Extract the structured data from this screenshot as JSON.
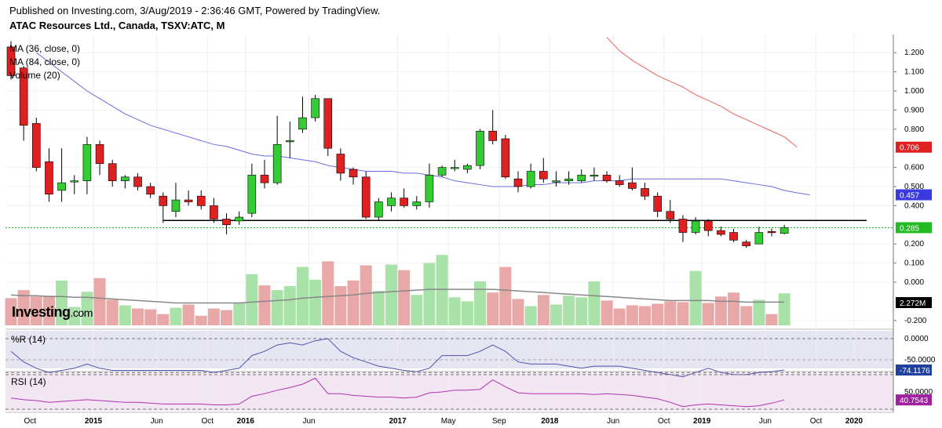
{
  "header": {
    "published": "Published on Investing.com, 3/Aug/2019 - 2:36:46 GMT, Powered by TradingView.",
    "symbol_title": "ATAC Resources Ltd., Canada, TSXV:ATC, M"
  },
  "legend": {
    "ma36": "MA (36, close, 0)",
    "ma84": "MA (84, close, 0)",
    "volume": "Volume (20)"
  },
  "logo": {
    "main": "Investing",
    "suffix": ".com"
  },
  "panes": {
    "williams_r": "%R (14)",
    "rsi": "RSI (14)"
  },
  "colors": {
    "up": "#33cc33",
    "down": "#e02020",
    "ma36": "#6a6ae0",
    "ma84": "#f06060",
    "vol_up": "#a8e2a8",
    "vol_down": "#e8a8a8",
    "vol_ma": "#888888",
    "wr_line": "#5050b0",
    "rsi_line": "#b030b0",
    "price_line": "#00c000",
    "badge_dark": "#000000",
    "badge_price": "#22bb22",
    "badge_wr": "#2040a0",
    "badge_rsi": "#a020a0"
  },
  "chart_data": {
    "type": "candlestick",
    "price_axis": {
      "ticks": [
        "1.200",
        "1.100",
        "1.000",
        "0.900",
        "0.800",
        "0.600",
        "0.500",
        "0.400",
        "0.200",
        "0.100",
        "0.000",
        "-0.200"
      ],
      "tick_values": [
        1.2,
        1.1,
        1.0,
        0.9,
        0.8,
        0.6,
        0.5,
        0.4,
        0.2,
        0.1,
        0.0,
        -0.2
      ]
    },
    "x_labels": [
      {
        "label": "Oct",
        "i": 1.5
      },
      {
        "label": "2015",
        "i": 6.5,
        "bold": true
      },
      {
        "label": "Jun",
        "i": 11.5
      },
      {
        "label": "Oct",
        "i": 15.5
      },
      {
        "label": "2016",
        "i": 18.5,
        "bold": true
      },
      {
        "label": "Jun",
        "i": 23.5
      },
      {
        "label": "2017",
        "i": 30.5,
        "bold": true
      },
      {
        "label": "May",
        "i": 34.5
      },
      {
        "label": "Sep",
        "i": 38.5
      },
      {
        "label": "2018",
        "i": 42.5,
        "bold": true
      },
      {
        "label": "Jun",
        "i": 47.5
      },
      {
        "label": "Oct",
        "i": 51.5
      },
      {
        "label": "2019",
        "i": 54.5,
        "bold": true
      },
      {
        "label": "Jun",
        "i": 59.5
      },
      {
        "label": "Oct",
        "i": 63.5
      },
      {
        "label": "2020",
        "i": 66.5,
        "bold": true
      }
    ],
    "candles": [
      {
        "o": 1.23,
        "h": 1.26,
        "l": 1.06,
        "c": 1.08
      },
      {
        "o": 1.12,
        "h": 1.13,
        "l": 0.74,
        "c": 0.82
      },
      {
        "o": 0.83,
        "h": 0.86,
        "l": 0.58,
        "c": 0.6
      },
      {
        "o": 0.63,
        "h": 0.7,
        "l": 0.42,
        "c": 0.46
      },
      {
        "o": 0.48,
        "h": 0.7,
        "l": 0.42,
        "c": 0.52
      },
      {
        "o": 0.53,
        "h": 0.56,
        "l": 0.46,
        "c": 0.53
      },
      {
        "o": 0.53,
        "h": 0.76,
        "l": 0.46,
        "c": 0.72
      },
      {
        "o": 0.72,
        "h": 0.74,
        "l": 0.56,
        "c": 0.62
      },
      {
        "o": 0.62,
        "h": 0.64,
        "l": 0.5,
        "c": 0.53
      },
      {
        "o": 0.53,
        "h": 0.56,
        "l": 0.49,
        "c": 0.55
      },
      {
        "o": 0.55,
        "h": 0.57,
        "l": 0.48,
        "c": 0.5
      },
      {
        "o": 0.5,
        "h": 0.52,
        "l": 0.44,
        "c": 0.46
      },
      {
        "o": 0.45,
        "h": 0.47,
        "l": 0.31,
        "c": 0.4
      },
      {
        "o": 0.37,
        "h": 0.52,
        "l": 0.34,
        "c": 0.43
      },
      {
        "o": 0.43,
        "h": 0.48,
        "l": 0.4,
        "c": 0.42
      },
      {
        "o": 0.45,
        "h": 0.48,
        "l": 0.38,
        "c": 0.4
      },
      {
        "o": 0.4,
        "h": 0.44,
        "l": 0.31,
        "c": 0.33
      },
      {
        "o": 0.33,
        "h": 0.36,
        "l": 0.25,
        "c": 0.3
      },
      {
        "o": 0.32,
        "h": 0.37,
        "l": 0.3,
        "c": 0.34
      },
      {
        "o": 0.36,
        "h": 0.62,
        "l": 0.34,
        "c": 0.56
      },
      {
        "o": 0.56,
        "h": 0.64,
        "l": 0.49,
        "c": 0.52
      },
      {
        "o": 0.52,
        "h": 0.87,
        "l": 0.51,
        "c": 0.72
      },
      {
        "o": 0.74,
        "h": 0.84,
        "l": 0.65,
        "c": 0.74
      },
      {
        "o": 0.8,
        "h": 0.97,
        "l": 0.78,
        "c": 0.86
      },
      {
        "o": 0.86,
        "h": 0.98,
        "l": 0.84,
        "c": 0.96
      },
      {
        "o": 0.96,
        "h": 0.96,
        "l": 0.66,
        "c": 0.7
      },
      {
        "o": 0.67,
        "h": 0.7,
        "l": 0.53,
        "c": 0.57
      },
      {
        "o": 0.59,
        "h": 0.6,
        "l": 0.51,
        "c": 0.55
      },
      {
        "o": 0.55,
        "h": 0.58,
        "l": 0.33,
        "c": 0.34
      },
      {
        "o": 0.34,
        "h": 0.44,
        "l": 0.32,
        "c": 0.42
      },
      {
        "o": 0.4,
        "h": 0.47,
        "l": 0.37,
        "c": 0.44
      },
      {
        "o": 0.44,
        "h": 0.49,
        "l": 0.39,
        "c": 0.4
      },
      {
        "o": 0.4,
        "h": 0.45,
        "l": 0.38,
        "c": 0.42
      },
      {
        "o": 0.42,
        "h": 0.62,
        "l": 0.39,
        "c": 0.56
      },
      {
        "o": 0.56,
        "h": 0.61,
        "l": 0.55,
        "c": 0.6
      },
      {
        "o": 0.6,
        "h": 0.64,
        "l": 0.58,
        "c": 0.6
      },
      {
        "o": 0.59,
        "h": 0.62,
        "l": 0.57,
        "c": 0.61
      },
      {
        "o": 0.61,
        "h": 0.8,
        "l": 0.59,
        "c": 0.79
      },
      {
        "o": 0.79,
        "h": 0.9,
        "l": 0.72,
        "c": 0.74
      },
      {
        "o": 0.75,
        "h": 0.77,
        "l": 0.54,
        "c": 0.55
      },
      {
        "o": 0.54,
        "h": 0.58,
        "l": 0.47,
        "c": 0.5
      },
      {
        "o": 0.5,
        "h": 0.62,
        "l": 0.49,
        "c": 0.58
      },
      {
        "o": 0.58,
        "h": 0.65,
        "l": 0.52,
        "c": 0.54
      },
      {
        "o": 0.53,
        "h": 0.58,
        "l": 0.5,
        "c": 0.53
      },
      {
        "o": 0.53,
        "h": 0.58,
        "l": 0.51,
        "c": 0.54
      },
      {
        "o": 0.53,
        "h": 0.59,
        "l": 0.52,
        "c": 0.56
      },
      {
        "o": 0.56,
        "h": 0.6,
        "l": 0.53,
        "c": 0.56
      },
      {
        "o": 0.56,
        "h": 0.58,
        "l": 0.52,
        "c": 0.53
      },
      {
        "o": 0.53,
        "h": 0.56,
        "l": 0.5,
        "c": 0.51
      },
      {
        "o": 0.52,
        "h": 0.6,
        "l": 0.48,
        "c": 0.49
      },
      {
        "o": 0.49,
        "h": 0.52,
        "l": 0.43,
        "c": 0.45
      },
      {
        "o": 0.45,
        "h": 0.47,
        "l": 0.34,
        "c": 0.37
      },
      {
        "o": 0.37,
        "h": 0.43,
        "l": 0.31,
        "c": 0.33
      },
      {
        "o": 0.33,
        "h": 0.35,
        "l": 0.21,
        "c": 0.26
      },
      {
        "o": 0.26,
        "h": 0.34,
        "l": 0.25,
        "c": 0.32
      },
      {
        "o": 0.32,
        "h": 0.33,
        "l": 0.24,
        "c": 0.27
      },
      {
        "o": 0.27,
        "h": 0.29,
        "l": 0.24,
        "c": 0.25
      },
      {
        "o": 0.26,
        "h": 0.28,
        "l": 0.21,
        "c": 0.22
      },
      {
        "o": 0.21,
        "h": 0.22,
        "l": 0.18,
        "c": 0.19
      },
      {
        "o": 0.2,
        "h": 0.29,
        "l": 0.2,
        "c": 0.26
      },
      {
        "o": 0.265,
        "h": 0.28,
        "l": 0.24,
        "c": 0.26
      },
      {
        "o": 0.255,
        "h": 0.3,
        "l": 0.25,
        "c": 0.285
      }
    ],
    "ma36": {
      "start": 2,
      "values": [
        1.2,
        1.15,
        1.1,
        1.05,
        1.0,
        0.96,
        0.92,
        0.88,
        0.85,
        0.82,
        0.8,
        0.78,
        0.76,
        0.74,
        0.72,
        0.71,
        0.69,
        0.67,
        0.66,
        0.66,
        0.65,
        0.64,
        0.63,
        0.61,
        0.6,
        0.59,
        0.58,
        0.58,
        0.58,
        0.57,
        0.57,
        0.56,
        0.55,
        0.53,
        0.52,
        0.51,
        0.5,
        0.5,
        0.5,
        0.51,
        0.51,
        0.52,
        0.52,
        0.52,
        0.53,
        0.53,
        0.53,
        0.54,
        0.54,
        0.54,
        0.54,
        0.54,
        0.54,
        0.54,
        0.54,
        0.53,
        0.52,
        0.51,
        0.5,
        0.48,
        0.467,
        0.457
      ]
    },
    "ma84": {
      "start": 47,
      "values": [
        1.28,
        1.21,
        1.16,
        1.12,
        1.08,
        1.05,
        1.02,
        0.98,
        0.95,
        0.92,
        0.88,
        0.85,
        0.82,
        0.79,
        0.76,
        0.706
      ]
    },
    "support_line": {
      "value": 0.323,
      "from": 12,
      "to": 67
    },
    "last_price": {
      "value": 0.285,
      "label": "0.285"
    },
    "badges": {
      "ma84": "0.706",
      "ma36": "0.457",
      "volume": "2.272M"
    },
    "volume": {
      "values": [
        0.34,
        0.44,
        0.36,
        0.37,
        0.56,
        0.23,
        0.42,
        0.59,
        0.32,
        0.25,
        0.21,
        0.2,
        0.14,
        0.22,
        0.26,
        0.12,
        0.21,
        0.19,
        0.28,
        0.64,
        0.5,
        0.44,
        0.49,
        0.73,
        0.57,
        0.8,
        0.49,
        0.56,
        0.75,
        0.43,
        0.76,
        0.69,
        0.38,
        0.78,
        0.88,
        0.35,
        0.3,
        0.55,
        0.41,
        0.73,
        0.33,
        0.24,
        0.38,
        0.26,
        0.37,
        0.35,
        0.55,
        0.31,
        0.21,
        0.25,
        0.24,
        0.27,
        0.3,
        0.29,
        0.68,
        0.28,
        0.36,
        0.41,
        0.24,
        0.32,
        0.14,
        0.4
      ],
      "ma": [
        0.38,
        0.37,
        0.37,
        0.36,
        0.36,
        0.35,
        0.35,
        0.34,
        0.33,
        0.32,
        0.31,
        0.3,
        0.29,
        0.28,
        0.28,
        0.28,
        0.28,
        0.28,
        0.28,
        0.29,
        0.3,
        0.31,
        0.32,
        0.34,
        0.35,
        0.36,
        0.37,
        0.38,
        0.4,
        0.41,
        0.42,
        0.43,
        0.44,
        0.45,
        0.45,
        0.45,
        0.45,
        0.45,
        0.45,
        0.44,
        0.43,
        0.42,
        0.41,
        0.4,
        0.39,
        0.38,
        0.37,
        0.36,
        0.35,
        0.34,
        0.33,
        0.32,
        0.31,
        0.31,
        0.31,
        0.31,
        0.3,
        0.3,
        0.29,
        0.29,
        0.29,
        0.29
      ]
    },
    "williams_r": {
      "ticks": [
        "0.0000",
        "-50.0000"
      ],
      "last": "-74.1176",
      "values": [
        -30,
        -55,
        -70,
        -80,
        -75,
        -70,
        -60,
        -70,
        -75,
        -75,
        -75,
        -75,
        -75,
        -75,
        -75,
        -75,
        -80,
        -75,
        -70,
        -40,
        -30,
        -15,
        -10,
        -15,
        -5,
        0,
        -30,
        -45,
        -55,
        -65,
        -70,
        -75,
        -78,
        -70,
        -40,
        -40,
        -40,
        -30,
        -15,
        -30,
        -55,
        -60,
        -60,
        -60,
        -65,
        -70,
        -65,
        -65,
        -65,
        -70,
        -75,
        -80,
        -85,
        -90,
        -80,
        -70,
        -80,
        -85,
        -85,
        -80,
        -78,
        -74.1
      ]
    },
    "rsi": {
      "ticks": [
        "50.0000"
      ],
      "last": "40.7543",
      "values": [
        43,
        41,
        40,
        38,
        39,
        40,
        41,
        40,
        39,
        38,
        38,
        37,
        36,
        36,
        36,
        36,
        35,
        35,
        36,
        45,
        48,
        52,
        55,
        59,
        66,
        48,
        48,
        46,
        45,
        44,
        44,
        43,
        44,
        49,
        50,
        52,
        52,
        53,
        64,
        56,
        49,
        48,
        48,
        48,
        48,
        48,
        47,
        48,
        47,
        46,
        44,
        42,
        38,
        33,
        35,
        36,
        35,
        34,
        33,
        34,
        37,
        40.75
      ]
    }
  }
}
